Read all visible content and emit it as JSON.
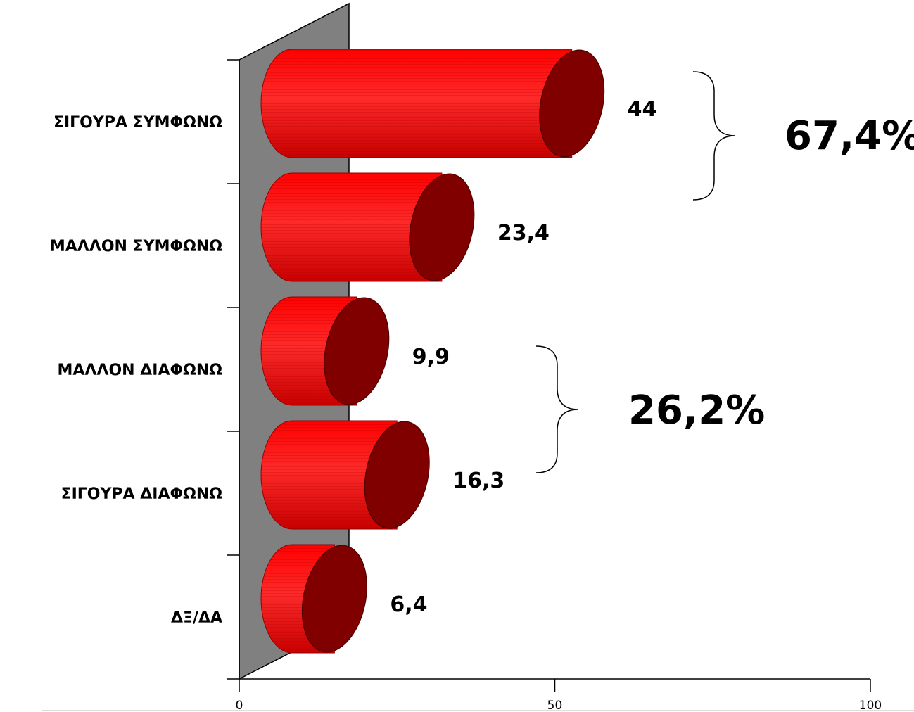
{
  "chart_data": {
    "type": "bar",
    "orientation": "horizontal",
    "style": "3d-cylinder",
    "categories": [
      "ΣΙΓΟΥΡΑ ΣΥΜΦΩΝΩ",
      "ΜΑΛΛΟΝ ΣΥΜΦΩΝΩ",
      "ΜΑΛΛΟΝ ΔΙΑΦΩΝΩ",
      "ΣΙΓΟΥΡΑ ΔΙΑΦΩΝΩ",
      "ΔΞ/ΔΑ"
    ],
    "values": [
      44,
      23.4,
      9.9,
      16.3,
      6.4
    ],
    "value_labels": [
      "44",
      "23,4",
      "9,9",
      "16,3",
      "6,4"
    ],
    "xlim": [
      0,
      100
    ],
    "x_ticks": [
      0,
      50,
      100
    ],
    "x_tick_labels": [
      "0",
      "50",
      "100"
    ],
    "title": "",
    "xlabel": "",
    "ylabel": "",
    "grid": false,
    "colors": {
      "bar": "#ff1a1a",
      "bar_dark": "#c00000",
      "bar_end": "#800000",
      "wall": "#808080"
    },
    "group_annotations": [
      {
        "label": "67,4%",
        "categories": [
          0,
          1
        ]
      },
      {
        "label": "26,2%",
        "categories": [
          2,
          3
        ]
      }
    ]
  }
}
